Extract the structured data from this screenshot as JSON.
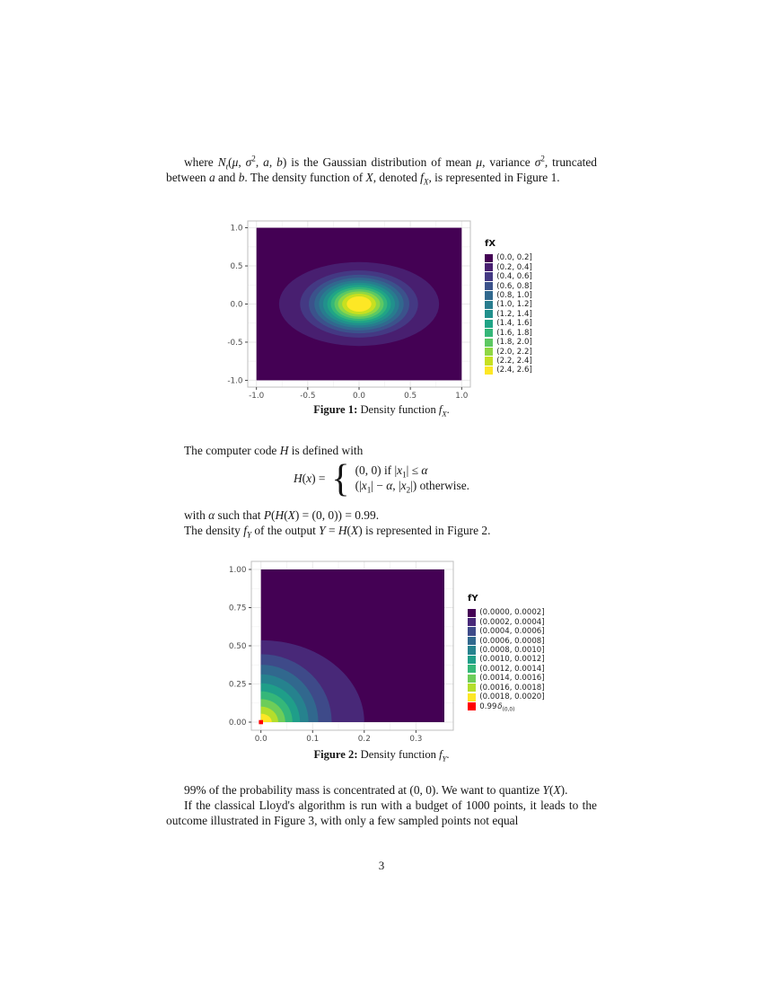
{
  "page_number": "3",
  "paragraphs": {
    "p1": "where <i>N</i><sub><i>t</i></sub>(<i>μ</i>, <i>σ</i><sup>2</sup>, <i>a</i>, <i>b</i>) is the Gaussian distribution of mean <i>μ</i>, variance <i>σ</i><sup>2</sup>, truncated between <i>a</i> and <i>b</i>. The density function of <i>X</i>, denoted <i>f</i><sub><i>X</i></sub>, is represented in Figure 1.",
    "p2": "The computer code <i>H</i> is defined with",
    "p3": "with <i>α</i> such that <i>P</i>(<i>H</i>(<i>X</i>) = (0, 0)) = 0.99.",
    "p4": "The density <i>f</i><sub><i>Y</i></sub> of the output <i>Y</i> = <i>H</i>(<i>X</i>) is represented in Figure 2.",
    "p5": "99% of the probability mass is concentrated at (0, 0). We want to quantize <i>Y</i>(<i>X</i>).",
    "p6": "If the classical Lloyd's algorithm is run with a budget of 1000 points, it leads to the outcome illustrated in Figure 3, with only a few sampled points not equal"
  },
  "equation": {
    "lhs": "<i>H</i>(<i>x</i>) =",
    "brace": "{",
    "case1": "(0, 0) if |<i>x</i><sub>1</sub>| ≤ <i>α</i>",
    "case2": "(|<i>x</i><sub>1</sub>| − <i>α</i>, |<i>x</i><sub>2</sub>|) otherwise."
  },
  "captions": {
    "fig1": {
      "html": "<b>Figure 1:</b> Density function <i>f</i><sub><i>X</i></sub>."
    },
    "fig2": {
      "html": "<b>Figure 2:</b> Density function <i>f</i><sub><i>Y</i></sub>."
    }
  },
  "chart_data": [
    {
      "type": "filled_contour",
      "name": "density-fX",
      "title": "",
      "xlabel": "",
      "ylabel": "",
      "legend_title": "fX",
      "legend_position": "right",
      "grid": true,
      "xlim": [
        -1.0,
        1.0
      ],
      "ylim": [
        -1.0,
        1.0
      ],
      "x_ticks": [
        -1.0,
        -0.5,
        0.0,
        0.5,
        1.0
      ],
      "x_tick_labels": [
        "-1.0",
        "-0.5",
        "0.0",
        "0.5",
        "1.0"
      ],
      "y_ticks": [
        -1.0,
        -0.5,
        0.0,
        0.5,
        1.0
      ],
      "y_tick_labels": [
        "-1.0",
        "-0.5",
        "0.0",
        "0.5",
        "1.0"
      ],
      "center": [
        0.0,
        0.0
      ],
      "bands": [
        {
          "label": "(0.0, 0.2]",
          "color": "#440154"
        },
        {
          "label": "(0.2, 0.4]",
          "color": "#481F70"
        },
        {
          "label": "(0.4, 0.6]",
          "color": "#443983"
        },
        {
          "label": "(0.6, 0.8]",
          "color": "#3B528B"
        },
        {
          "label": "(0.8, 1.0]",
          "color": "#31688E"
        },
        {
          "label": "(1.0, 1.2]",
          "color": "#287C8E"
        },
        {
          "label": "(1.2, 1.4]",
          "color": "#21908C"
        },
        {
          "label": "(1.4, 1.6]",
          "color": "#20A486"
        },
        {
          "label": "(1.6, 1.8]",
          "color": "#35B779"
        },
        {
          "label": "(1.8, 2.0]",
          "color": "#5DC863"
        },
        {
          "label": "(2.0, 2.2]",
          "color": "#8FD744"
        },
        {
          "label": "(2.2, 2.4]",
          "color": "#C7E020"
        },
        {
          "label": "(2.4, 2.6]",
          "color": "#FDE725"
        }
      ],
      "contours": [
        {
          "level": 0.2,
          "rx": 0.78,
          "ry": 0.55
        },
        {
          "level": 0.4,
          "rx": 0.575,
          "ry": 0.44
        },
        {
          "level": 0.6,
          "rx": 0.49,
          "ry": 0.385
        },
        {
          "level": 0.8,
          "rx": 0.435,
          "ry": 0.345
        },
        {
          "level": 1.0,
          "rx": 0.39,
          "ry": 0.31
        },
        {
          "level": 1.2,
          "rx": 0.35,
          "ry": 0.28
        },
        {
          "level": 1.4,
          "rx": 0.31,
          "ry": 0.25
        },
        {
          "level": 1.6,
          "rx": 0.275,
          "ry": 0.222
        },
        {
          "level": 1.8,
          "rx": 0.24,
          "ry": 0.195
        },
        {
          "level": 2.0,
          "rx": 0.205,
          "ry": 0.165
        },
        {
          "level": 2.2,
          "rx": 0.165,
          "ry": 0.135
        },
        {
          "level": 2.4,
          "rx": 0.12,
          "ry": 0.1
        }
      ]
    },
    {
      "type": "filled_contour",
      "name": "density-fY",
      "title": "",
      "xlabel": "",
      "ylabel": "",
      "legend_title": "fY",
      "legend_position": "right",
      "grid": true,
      "xlim": [
        0.0,
        0.355
      ],
      "ylim": [
        0.0,
        1.0
      ],
      "x_ticks": [
        0.0,
        0.1,
        0.2,
        0.3
      ],
      "x_tick_labels": [
        "0.0",
        "0.1",
        "0.2",
        "0.3"
      ],
      "y_ticks": [
        0.0,
        0.25,
        0.5,
        0.75,
        1.0
      ],
      "y_tick_labels": [
        "0.00",
        "0.25",
        "0.50",
        "0.75",
        "1.00"
      ],
      "center": [
        0.0,
        0.0
      ],
      "bands": [
        {
          "label": "(0.0000, 0.0002]",
          "color": "#440154"
        },
        {
          "label": "(0.0002, 0.0004]",
          "color": "#482878"
        },
        {
          "label": "(0.0004, 0.0006]",
          "color": "#3E4A89"
        },
        {
          "label": "(0.0006, 0.0008]",
          "color": "#31688E"
        },
        {
          "label": "(0.0008, 0.0010]",
          "color": "#26828E"
        },
        {
          "label": "(0.0010, 0.0012]",
          "color": "#1F9E89"
        },
        {
          "label": "(0.0012, 0.0014]",
          "color": "#35B779"
        },
        {
          "label": "(0.0014, 0.0016]",
          "color": "#6DCD59"
        },
        {
          "label": "(0.0016, 0.0018]",
          "color": "#B4DE2C"
        },
        {
          "label": "(0.0018, 0.0020]",
          "color": "#FDE725"
        }
      ],
      "contours": [
        {
          "level": 0.0002,
          "rx": 0.2,
          "ry": 0.537
        },
        {
          "level": 0.0004,
          "rx": 0.137,
          "ry": 0.445
        },
        {
          "level": 0.0006,
          "rx": 0.111,
          "ry": 0.376
        },
        {
          "level": 0.0008,
          "rx": 0.092,
          "ry": 0.313
        },
        {
          "level": 0.001,
          "rx": 0.0755,
          "ry": 0.255
        },
        {
          "level": 0.0012,
          "rx": 0.061,
          "ry": 0.202
        },
        {
          "level": 0.0014,
          "rx": 0.047,
          "ry": 0.151
        },
        {
          "level": 0.0016,
          "rx": 0.0335,
          "ry": 0.102
        },
        {
          "level": 0.0018,
          "rx": 0.021,
          "ry": 0.055
        }
      ],
      "delta_mass": {
        "x": 0.0,
        "y": 0.0,
        "weight": 0.99,
        "color": "#FF0000",
        "label": "0.99δ(0,0)",
        "label_html": "0.99&hairsp;<i>δ</i><sub>(0,0)</sub>"
      }
    }
  ]
}
